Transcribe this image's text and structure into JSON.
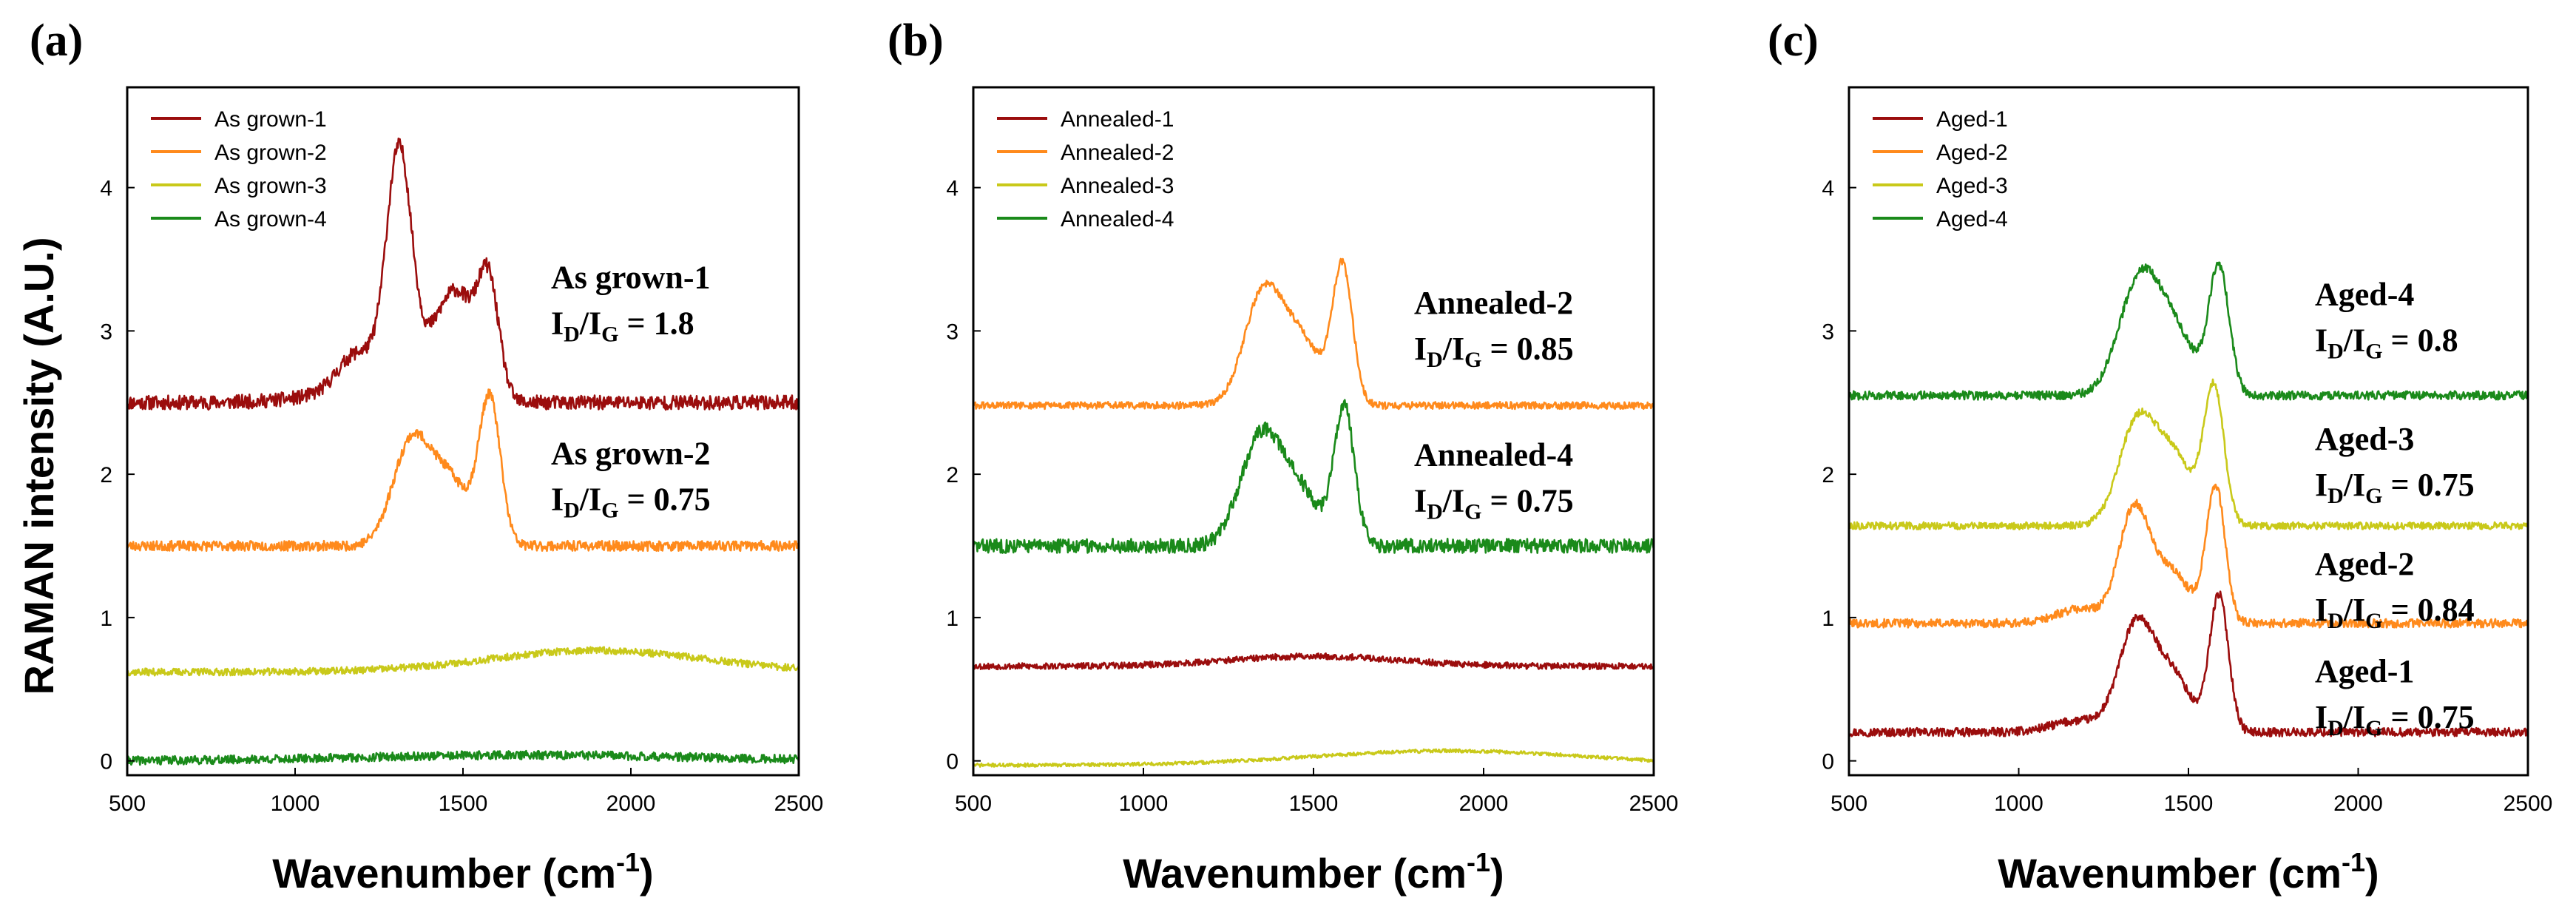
{
  "ylabel": "RAMAN intensity (A.U.)",
  "colors": {
    "series1": "#9b0d0d",
    "series2": "#ff8a1c",
    "series3": "#c9c91a",
    "series4": "#1a8a1a"
  },
  "chart_data": [
    {
      "type": "line",
      "panel": "(a)",
      "xlabel": "Wavenumber (cm",
      "xlabel_sup": "-1",
      "xlabel_end": ")",
      "xlim": [
        500,
        2500
      ],
      "ylim": [
        -0.1,
        4.7
      ],
      "xticks": [
        500,
        1000,
        1500,
        2000,
        2500
      ],
      "yticks": [
        0,
        1,
        2,
        3,
        4
      ],
      "legend_position": "top-left",
      "series": [
        {
          "name": "As grown-1",
          "color": "#9b0d0d",
          "baseline": 2.5,
          "peaks": [
            [
              1140,
              140,
              0.05
            ],
            [
              1190,
              60,
              0.3
            ],
            [
              1310,
              38,
              1.7
            ],
            [
              1440,
              55,
              0.55
            ],
            [
              1500,
              40,
              0.4
            ],
            [
              1575,
              32,
              0.85
            ]
          ],
          "noise": 0.05,
          "seed": 11
        },
        {
          "name": "As grown-2",
          "color": "#ff8a1c",
          "baseline": 1.5,
          "peaks": [
            [
              1345,
              55,
              0.7
            ],
            [
              1460,
              60,
              0.45
            ],
            [
              1580,
              32,
              1.0
            ]
          ],
          "noise": 0.035,
          "seed": 23
        },
        {
          "name": "As grown-3",
          "color": "#c9c91a",
          "baseline": 0.62,
          "peaks": [
            [
              1900,
              320,
              0.15
            ]
          ],
          "noise": 0.025,
          "seed": 37
        },
        {
          "name": "As grown-4",
          "color": "#1a8a1a",
          "baseline": 0.0,
          "peaks": [
            [
              1700,
              500,
              0.04
            ]
          ],
          "noise": 0.03,
          "seed": 41
        }
      ],
      "annotations": [
        {
          "name": "As grown-1",
          "ratio": "1.8",
          "ypos": 3.3
        },
        {
          "name": "As grown-2",
          "ratio": "0.75",
          "ypos": 2.07
        }
      ]
    },
    {
      "type": "line",
      "panel": "(b)",
      "xlabel": "Wavenumber (cm",
      "xlabel_sup": "-1",
      "xlabel_end": ")",
      "xlim": [
        500,
        2500
      ],
      "ylim": [
        -0.1,
        4.7
      ],
      "xticks": [
        500,
        1000,
        1500,
        2000,
        2500
      ],
      "yticks": [
        0,
        1,
        2,
        3,
        4
      ],
      "legend_position": "top-left",
      "series": [
        {
          "name": "Annealed-1",
          "color": "#9b0d0d",
          "baseline": 0.66,
          "peaks": [
            [
              1500,
              250,
              0.07
            ]
          ],
          "noise": 0.022,
          "seed": 53
        },
        {
          "name": "Annealed-2",
          "color": "#ff8a1c",
          "baseline": 2.48,
          "peaks": [
            [
              1350,
              55,
              0.75
            ],
            [
              1460,
              60,
              0.45
            ],
            [
              1585,
              30,
              0.95
            ]
          ],
          "noise": 0.025,
          "seed": 61
        },
        {
          "name": "Annealed-3",
          "color": "#c9c91a",
          "baseline": -0.03,
          "peaks": [
            [
              1900,
              400,
              0.1
            ]
          ],
          "noise": 0.012,
          "seed": 71
        },
        {
          "name": "Annealed-4",
          "color": "#1a8a1a",
          "baseline": 1.5,
          "peaks": [
            [
              1345,
              60,
              0.75
            ],
            [
              1460,
              60,
              0.35
            ],
            [
              1590,
              30,
              0.95
            ]
          ],
          "noise": 0.05,
          "seed": 83
        }
      ],
      "annotations": [
        {
          "name": "Annealed-2",
          "ratio": "0.85",
          "ypos": 3.12
        },
        {
          "name": "Annealed-4",
          "ratio": "0.75",
          "ypos": 2.06
        }
      ]
    },
    {
      "type": "line",
      "panel": "(c)",
      "xlabel": "Wavenumber (cm",
      "xlabel_sup": "-1",
      "xlabel_end": ")",
      "xlim": [
        500,
        2500
      ],
      "ylim": [
        -0.1,
        4.7
      ],
      "xticks": [
        500,
        1000,
        1500,
        2000,
        2500
      ],
      "yticks": [
        0,
        1,
        2,
        3,
        4
      ],
      "legend_position": "top-left",
      "series": [
        {
          "name": "Aged-1",
          "color": "#9b0d0d",
          "baseline": 0.2,
          "peaks": [
            [
              1180,
              80,
              0.08
            ],
            [
              1345,
              50,
              0.72
            ],
            [
              1450,
              55,
              0.4
            ],
            [
              1590,
              28,
              0.95
            ]
          ],
          "noise": 0.03,
          "seed": 97
        },
        {
          "name": "Aged-2",
          "color": "#ff8a1c",
          "baseline": 0.96,
          "peaks": [
            [
              1180,
              70,
              0.1
            ],
            [
              1340,
              45,
              0.78
            ],
            [
              1450,
              55,
              0.35
            ],
            [
              1580,
              28,
              0.95
            ]
          ],
          "noise": 0.03,
          "seed": 101
        },
        {
          "name": "Aged-3",
          "color": "#c9c91a",
          "baseline": 1.64,
          "peaks": [
            [
              1350,
              55,
              0.72
            ],
            [
              1460,
              55,
              0.45
            ],
            [
              1575,
              30,
              0.95
            ]
          ],
          "noise": 0.025,
          "seed": 113
        },
        {
          "name": "Aged-4",
          "color": "#1a8a1a",
          "baseline": 2.55,
          "peaks": [
            [
              1355,
              60,
              0.78
            ],
            [
              1460,
              60,
              0.4
            ],
            [
              1590,
              30,
              0.88
            ]
          ],
          "noise": 0.03,
          "seed": 127
        }
      ],
      "annotations": [
        {
          "name": "Aged-4",
          "ratio": "0.8",
          "ypos": 3.18
        },
        {
          "name": "Aged-3",
          "ratio": "0.75",
          "ypos": 2.17
        },
        {
          "name": "Aged-2",
          "ratio": "0.84",
          "ypos": 1.3
        },
        {
          "name": "Aged-1",
          "ratio": "0.75",
          "ypos": 0.55
        }
      ]
    }
  ]
}
